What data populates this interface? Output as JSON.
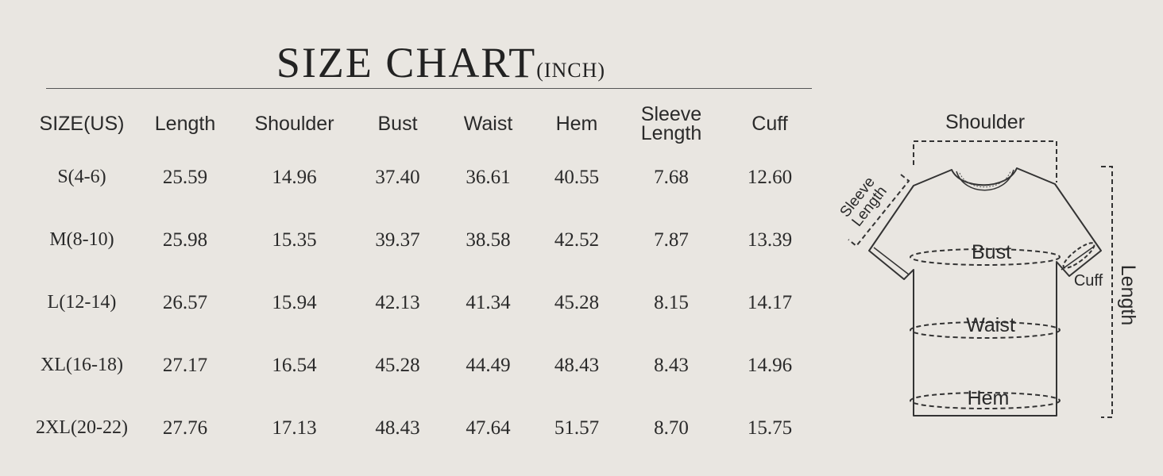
{
  "title": {
    "main": "SIZE CHART",
    "unit": "(INCH)"
  },
  "table": {
    "headers": [
      "SIZE(US)",
      "Length",
      "Shoulder",
      "Bust",
      "Waist",
      "Hem",
      "Sleeve Length",
      "Cuff"
    ],
    "rows": [
      [
        "S(4-6)",
        "25.59",
        "14.96",
        "37.40",
        "36.61",
        "40.55",
        "7.68",
        "12.60"
      ],
      [
        "M(8-10)",
        "25.98",
        "15.35",
        "39.37",
        "38.58",
        "42.52",
        "7.87",
        "13.39"
      ],
      [
        "L(12-14)",
        "26.57",
        "15.94",
        "42.13",
        "41.34",
        "45.28",
        "8.15",
        "14.17"
      ],
      [
        "XL(16-18)",
        "27.17",
        "16.54",
        "45.28",
        "44.49",
        "48.43",
        "8.43",
        "14.96"
      ],
      [
        "2XL(20-22)",
        "27.76",
        "17.13",
        "48.43",
        "47.64",
        "51.57",
        "8.70",
        "15.75"
      ]
    ]
  },
  "diagram": {
    "shoulder": "Shoulder",
    "sleeve_length_line1": "Sleeve",
    "sleeve_length_line2": "Length",
    "bust": "Bust",
    "waist": "Waist",
    "hem": "Hem",
    "cuff": "Cuff",
    "length": "Length"
  }
}
